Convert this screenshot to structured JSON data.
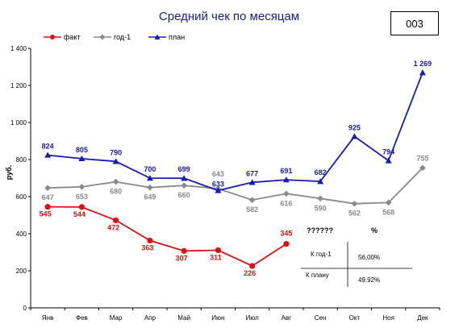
{
  "code": "003",
  "chart_data": {
    "type": "line",
    "title": "Средний чек по месяцам",
    "ylabel": "руб.",
    "ylim": [
      0,
      1400
    ],
    "yticks": [
      0,
      200,
      400,
      600,
      800,
      1000,
      1200,
      1400
    ],
    "ytick_labels": [
      "0",
      "200",
      "400",
      "600",
      "800",
      "1 000",
      "1 200",
      "1 400"
    ],
    "categories": [
      "Янв",
      "Фев",
      "Мар",
      "Апр",
      "Май",
      "Июн",
      "Июл",
      "Авг",
      "Сен",
      "Окт",
      "Ноя",
      "Дек"
    ],
    "legend_position": "top-left",
    "grid": false,
    "series": [
      {
        "name": "факт",
        "color": "#dd1111",
        "marker": "circle",
        "values": [
          545,
          544,
          472,
          363,
          307,
          311,
          226,
          345,
          null,
          null,
          null,
          null
        ],
        "labels": [
          "545",
          "544",
          "472",
          "363",
          "307",
          "311",
          "226",
          "345",
          "",
          "",
          "",
          ""
        ]
      },
      {
        "name": "год-1",
        "color": "#8a8a8a",
        "marker": "diamond",
        "values": [
          647,
          653,
          680,
          649,
          660,
          643,
          582,
          616,
          590,
          562,
          568,
          755
        ],
        "labels": [
          "647",
          "653",
          "680",
          "649",
          "660",
          "643",
          "582",
          "616",
          "590",
          "562",
          "568",
          "755"
        ]
      },
      {
        "name": "план",
        "color": "#1a1ab8",
        "marker": "triangle",
        "values": [
          824,
          805,
          790,
          700,
          699,
          633,
          677,
          691,
          682,
          925,
          794,
          1269
        ],
        "labels": [
          "824",
          "805",
          "790",
          "700",
          "699",
          "633",
          "677",
          "691",
          "682",
          "925",
          "794",
          "1 269"
        ]
      }
    ],
    "table": {
      "header": [
        "??????",
        "%"
      ],
      "rows": [
        [
          "К год-1",
          "56,00%"
        ],
        [
          "К плану",
          "49,92%"
        ]
      ]
    }
  }
}
